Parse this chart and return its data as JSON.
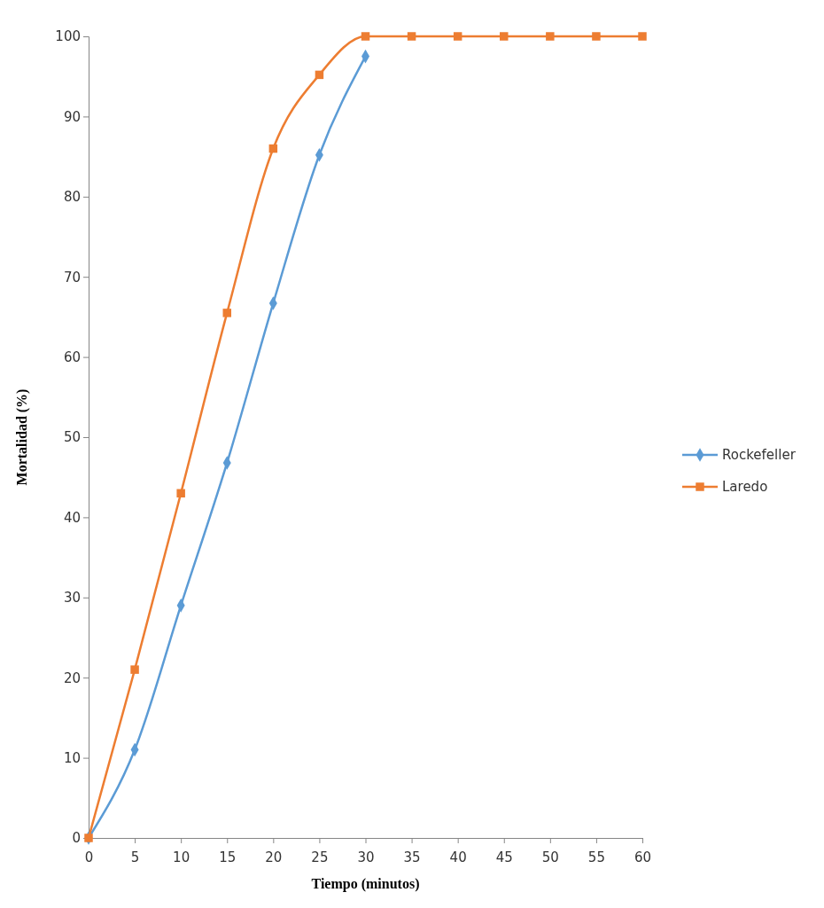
{
  "chart_data": {
    "type": "line",
    "xlabel": "Tiempo (minutos)",
    "ylabel": "Mortalidad (%)",
    "x": [
      0,
      5,
      10,
      15,
      20,
      25,
      30,
      35,
      40,
      45,
      50,
      55,
      60
    ],
    "series": [
      {
        "name": "Rockefeller",
        "color": "#5b9bd5",
        "marker": "diamond",
        "values": [
          0,
          11,
          29,
          46.8,
          66.7,
          85.2,
          97.5,
          null,
          null,
          null,
          null,
          null,
          null
        ]
      },
      {
        "name": "Laredo",
        "color": "#ed7d31",
        "marker": "square",
        "values": [
          0,
          21,
          43,
          65.5,
          86,
          95.2,
          100,
          100,
          100,
          100,
          100,
          100,
          100
        ]
      }
    ],
    "xlim": [
      0,
      60
    ],
    "xticks": [
      0,
      5,
      10,
      15,
      20,
      25,
      30,
      35,
      40,
      45,
      50,
      55,
      60
    ],
    "ylim": [
      0,
      100
    ],
    "yticks": [
      0,
      10,
      20,
      30,
      40,
      50,
      60,
      70,
      80,
      90,
      100
    ],
    "grid": false,
    "legend": "right",
    "line_style": "solid"
  }
}
